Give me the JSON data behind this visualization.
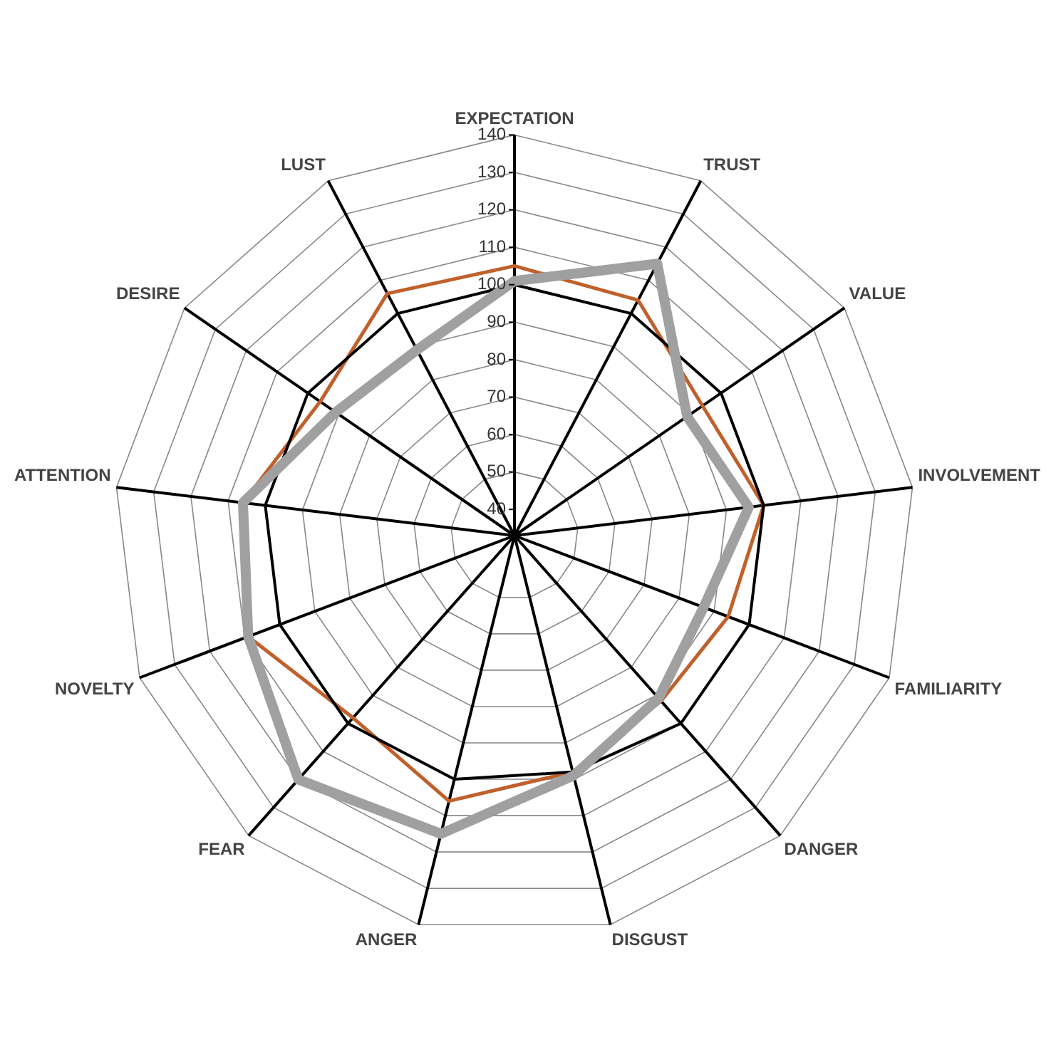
{
  "chart_data": {
    "type": "radar",
    "categories": [
      "EXPECTATION",
      "TRUST",
      "VALUE",
      "INVOLVEMENT",
      "FAMILIARITY",
      "DANGER",
      "DISGUST",
      "ANGER",
      "FEAR",
      "NOVELTY",
      "ATTENTION",
      "DESIRE",
      "LUST"
    ],
    "series": [
      {
        "color": "#a0a0a0",
        "values": [
          101,
          115,
          89,
          96,
          87,
          91,
          99,
          115,
          120,
          109,
          106,
          91,
          89
        ]
      },
      {
        "color": "#000000",
        "values": [
          100,
          100,
          100,
          100,
          100,
          100,
          98,
          100,
          100,
          100,
          100,
          100,
          100
        ]
      },
      {
        "color": "#c0602a",
        "values": [
          105,
          104,
          94,
          100,
          94,
          92,
          98,
          106,
          98,
          109,
          106,
          96,
          106
        ]
      }
    ],
    "ylim": [
      33,
      140
    ],
    "yticks": [
      40,
      50,
      60,
      70,
      80,
      90,
      100,
      110,
      120,
      130,
      140
    ],
    "grid": true,
    "legend": false,
    "marker": "none",
    "line_style": "solid"
  }
}
